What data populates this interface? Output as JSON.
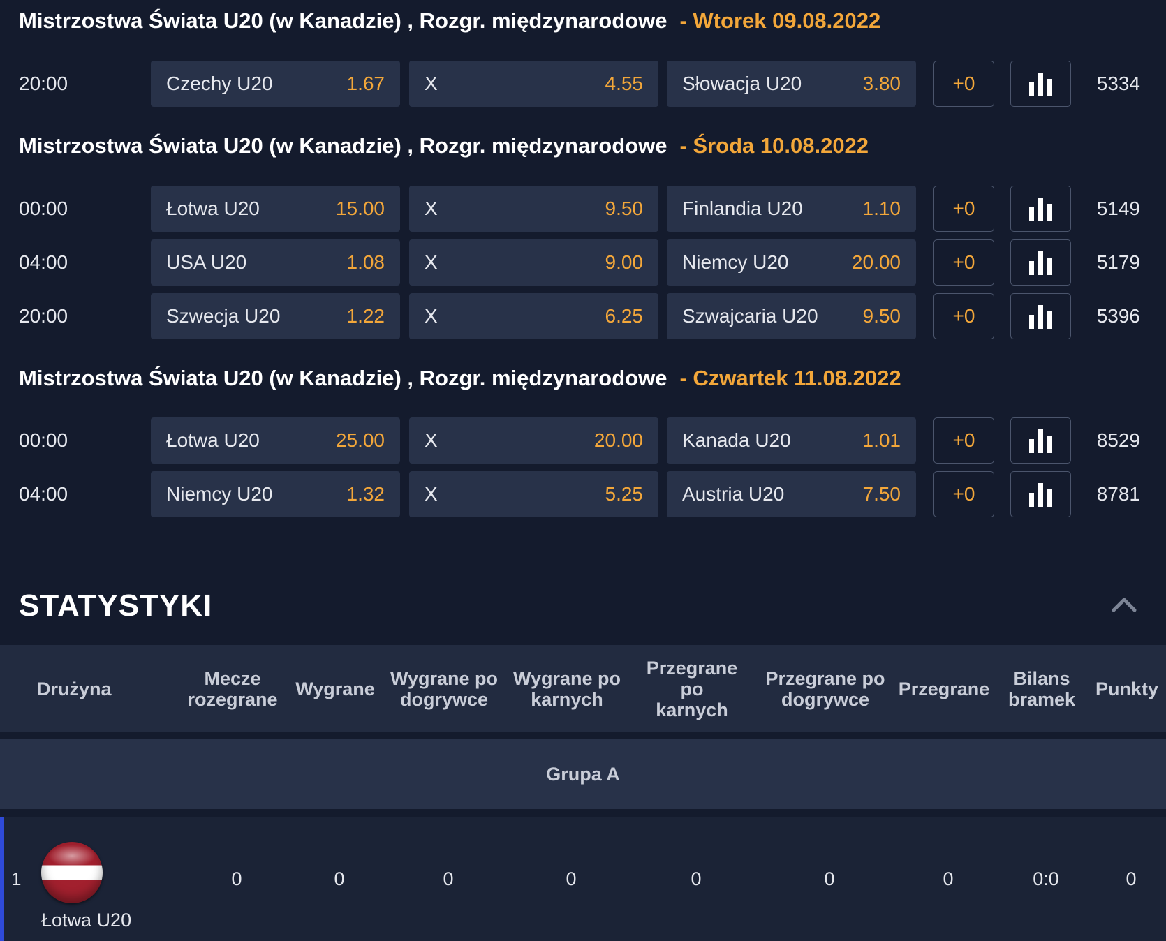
{
  "leagues": [
    {
      "title": "Mistrzostwa Świata U20 (w Kanadzie) , Rozgr. międzynarodowe",
      "date": "- Wtorek 09.08.2022",
      "matches": [
        {
          "time": "20:00",
          "home": "Czechy U20",
          "home_odd": "1.67",
          "draw": "X",
          "draw_odd": "4.55",
          "away": "Słowacja U20",
          "away_odd": "3.80",
          "plus": "+0",
          "count": "5334"
        }
      ]
    },
    {
      "title": "Mistrzostwa Świata U20 (w Kanadzie) , Rozgr. międzynarodowe",
      "date": "- Środa 10.08.2022",
      "matches": [
        {
          "time": "00:00",
          "home": "Łotwa U20",
          "home_odd": "15.00",
          "draw": "X",
          "draw_odd": "9.50",
          "away": "Finlandia U20",
          "away_odd": "1.10",
          "plus": "+0",
          "count": "5149"
        },
        {
          "time": "04:00",
          "home": "USA U20",
          "home_odd": "1.08",
          "draw": "X",
          "draw_odd": "9.00",
          "away": "Niemcy U20",
          "away_odd": "20.00",
          "plus": "+0",
          "count": "5179"
        },
        {
          "time": "20:00",
          "home": "Szwecja U20",
          "home_odd": "1.22",
          "draw": "X",
          "draw_odd": "6.25",
          "away": "Szwajcaria U20",
          "away_odd": "9.50",
          "plus": "+0",
          "count": "5396"
        }
      ]
    },
    {
      "title": "Mistrzostwa Świata U20 (w Kanadzie) , Rozgr. międzynarodowe",
      "date": "- Czwartek 11.08.2022",
      "matches": [
        {
          "time": "00:00",
          "home": "Łotwa U20",
          "home_odd": "25.00",
          "draw": "X",
          "draw_odd": "20.00",
          "away": "Kanada U20",
          "away_odd": "1.01",
          "plus": "+0",
          "count": "8529"
        },
        {
          "time": "04:00",
          "home": "Niemcy U20",
          "home_odd": "1.32",
          "draw": "X",
          "draw_odd": "5.25",
          "away": "Austria U20",
          "away_odd": "7.50",
          "plus": "+0",
          "count": "8781"
        }
      ]
    }
  ],
  "stats": {
    "title": "STATYSTYKI",
    "collapse_icon": "chevron-up-icon",
    "columns": [
      {
        "line1": "Drużyna",
        "line2": ""
      },
      {
        "line1": "Mecze",
        "line2": "rozegrane"
      },
      {
        "line1": "Wygrane",
        "line2": ""
      },
      {
        "line1": "Wygrane po",
        "line2": "dogrywce"
      },
      {
        "line1": "Wygrane po",
        "line2": "karnych"
      },
      {
        "line1": "Przegrane po",
        "line2": "karnych"
      },
      {
        "line1": "Przegrane po",
        "line2": "dogrywce"
      },
      {
        "line1": "Przegrane",
        "line2": ""
      },
      {
        "line1": "Bilans",
        "line2": "bramek"
      },
      {
        "line1": "Punkty",
        "line2": ""
      }
    ],
    "group": "Grupa A",
    "rows": [
      {
        "position": "1",
        "flag_icon": "latvia-flag-icon",
        "team": "Łotwa U20",
        "values": [
          "0",
          "0",
          "0",
          "0",
          "0",
          "0",
          "0",
          "0:0",
          "0"
        ]
      }
    ]
  },
  "colors": {
    "background": "#141b2d",
    "odd_box": "#283249",
    "accent_orange": "#f3a73a",
    "header_row": "#222b40",
    "active_row_border": "#2f4ad8"
  }
}
